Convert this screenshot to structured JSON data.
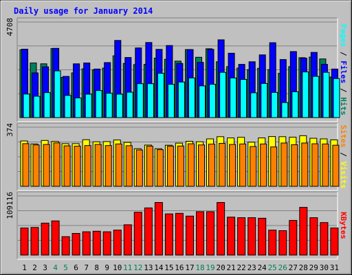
{
  "title": "Daily usage for January 2014",
  "colors": {
    "background": "#C0C0C0",
    "title_text": "#0000FF",
    "hits": "#00805C",
    "files": "#0000FF",
    "pages": "#00FFFF",
    "visits": "#FFFF00",
    "sites": "#FF8000",
    "kbytes": "#FF0000",
    "weekend_label": "#00805C",
    "weekday_label": "#000000"
  },
  "chart_data": [
    {
      "type": "bar",
      "panel": "hits_files_pages",
      "ymax_label": "4708",
      "ylim": [
        0,
        4708
      ],
      "grid": true,
      "legend": [
        "Pages",
        "Files",
        "Hits"
      ],
      "legend_placement": "right",
      "categories": [
        "1",
        "2",
        "3",
        "4",
        "5",
        "6",
        "7",
        "8",
        "9",
        "10",
        "11",
        "12",
        "13",
        "14",
        "15",
        "16",
        "17",
        "18",
        "19",
        "20",
        "21",
        "22",
        "23",
        "24",
        "25",
        "26",
        "27",
        "28",
        "29",
        "30",
        "31"
      ],
      "series": [
        {
          "name": "Hits",
          "values": [
            3340,
            2690,
            2650,
            3400,
            1980,
            2200,
            2400,
            2350,
            2440,
            3040,
            2670,
            2610,
            2620,
            2930,
            2870,
            2780,
            3350,
            2970,
            3390,
            2750,
            2510,
            2440,
            2360,
            2430,
            2360,
            2180,
            2510,
            2950,
            2980,
            2890,
            2000
          ]
        },
        {
          "name": "Files",
          "values": [
            3370,
            2200,
            2500,
            3410,
            2030,
            2650,
            2690,
            2390,
            2710,
            3800,
            2960,
            3430,
            3700,
            3360,
            3550,
            2670,
            3350,
            2720,
            3360,
            3830,
            3170,
            2620,
            2750,
            3090,
            3690,
            2860,
            3250,
            2930,
            3210,
            2620,
            2390
          ]
        },
        {
          "name": "Pages",
          "values": [
            1160,
            1050,
            1230,
            2300,
            1090,
            970,
            1150,
            1330,
            1200,
            1150,
            1250,
            1670,
            1670,
            2180,
            1640,
            1750,
            1950,
            1560,
            1640,
            2230,
            1950,
            1880,
            1220,
            1680,
            1240,
            740,
            1270,
            2250,
            2030,
            2230,
            1920
          ]
        }
      ]
    },
    {
      "type": "bar",
      "panel": "visits_sites",
      "ymax_label": "374",
      "ylim": [
        0,
        374
      ],
      "grid": true,
      "legend": [
        "Sites",
        "Visits"
      ],
      "legend_placement": "right",
      "categories": [
        "1",
        "2",
        "3",
        "4",
        "5",
        "6",
        "7",
        "8",
        "9",
        "10",
        "11",
        "12",
        "13",
        "14",
        "15",
        "16",
        "17",
        "18",
        "19",
        "20",
        "21",
        "22",
        "23",
        "24",
        "25",
        "26",
        "27",
        "28",
        "29",
        "30",
        "31"
      ],
      "series": [
        {
          "name": "Visits",
          "values": [
            287,
            268,
            290,
            284,
            270,
            270,
            295,
            282,
            283,
            293,
            278,
            238,
            261,
            238,
            260,
            273,
            285,
            282,
            300,
            314,
            306,
            310,
            279,
            306,
            315,
            314,
            311,
            320,
            304,
            300,
            294
          ]
        },
        {
          "name": "Sites",
          "values": [
            270,
            262,
            265,
            275,
            256,
            254,
            258,
            265,
            258,
            268,
            257,
            230,
            254,
            232,
            254,
            255,
            269,
            262,
            267,
            272,
            265,
            268,
            252,
            268,
            249,
            274,
            263,
            274,
            269,
            268,
            260
          ]
        }
      ]
    },
    {
      "type": "bar",
      "panel": "kbytes",
      "ymax_label": "109116",
      "ylim": [
        0,
        109116
      ],
      "grid": true,
      "legend": [
        "KBytes"
      ],
      "legend_placement": "right",
      "categories": [
        "1",
        "2",
        "3",
        "4",
        "5",
        "6",
        "7",
        "8",
        "9",
        "10",
        "11",
        "12",
        "13",
        "14",
        "15",
        "16",
        "17",
        "18",
        "19",
        "20",
        "21",
        "22",
        "23",
        "24",
        "25",
        "26",
        "27",
        "28",
        "29",
        "30",
        "31"
      ],
      "series": [
        {
          "name": "KBytes",
          "values": [
            50000,
            51000,
            59000,
            63000,
            34000,
            40000,
            43000,
            44000,
            43000,
            46000,
            56000,
            79000,
            87000,
            97000,
            76000,
            77000,
            72000,
            80000,
            80000,
            97000,
            70000,
            69000,
            69000,
            68000,
            46000,
            45000,
            64000,
            88000,
            69000,
            60000,
            50000
          ]
        }
      ]
    }
  ]
}
